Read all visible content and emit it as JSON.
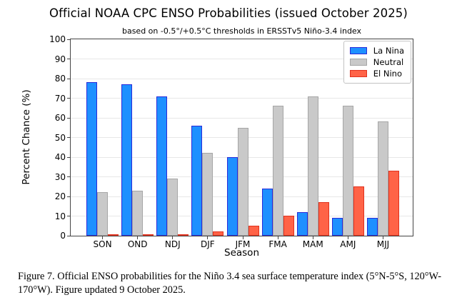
{
  "title": "Official NOAA CPC ENSO Probabilities (issued October 2025)",
  "subtitle": "based on -0.5°/+0.5°C thresholds in ERSSTv5 Niño-3.4 index",
  "caption": "Figure 7. Official ENSO probabilities for the Niño 3.4 sea surface temperature index (5°N-5°S, 120°W-170°W). Figure updated 9 October 2025.",
  "chart_data": {
    "type": "bar",
    "title": "Official NOAA CPC ENSO Probabilities (issued October 2025)",
    "subtitle": "based on -0.5°/+0.5°C thresholds in ERSSTv5 Niño-3.4 index",
    "xlabel": "Season",
    "ylabel": "Percent Chance (%)",
    "ylim": [
      0,
      100
    ],
    "yticks": [
      0,
      10,
      20,
      30,
      40,
      50,
      60,
      70,
      80,
      90,
      100
    ],
    "grid": true,
    "legend_position": "upper right",
    "categories": [
      "SON",
      "OND",
      "NDJ",
      "DJF",
      "JFM",
      "FMA",
      "MAM",
      "AMJ",
      "MJJ"
    ],
    "series": [
      {
        "name": "La Nina",
        "color": "#1e90ff",
        "edge_color": "#2a2ad9",
        "values": [
          78,
          77,
          71,
          56,
          40,
          24,
          12,
          9,
          9
        ]
      },
      {
        "name": "Neutral",
        "color": "#c9c9c9",
        "edge_color": "#a6a6a6",
        "values": [
          22,
          23,
          29,
          42,
          55,
          66,
          71,
          66,
          58
        ]
      },
      {
        "name": "El Nino",
        "color": "#ff6347",
        "edge_color": "#e0311e",
        "values": [
          0,
          0,
          0,
          2,
          5,
          10,
          17,
          25,
          33
        ]
      }
    ]
  },
  "style": {
    "grid_color": "#e7e7e7",
    "spine_color": "#444444",
    "background": "#ffffff"
  }
}
